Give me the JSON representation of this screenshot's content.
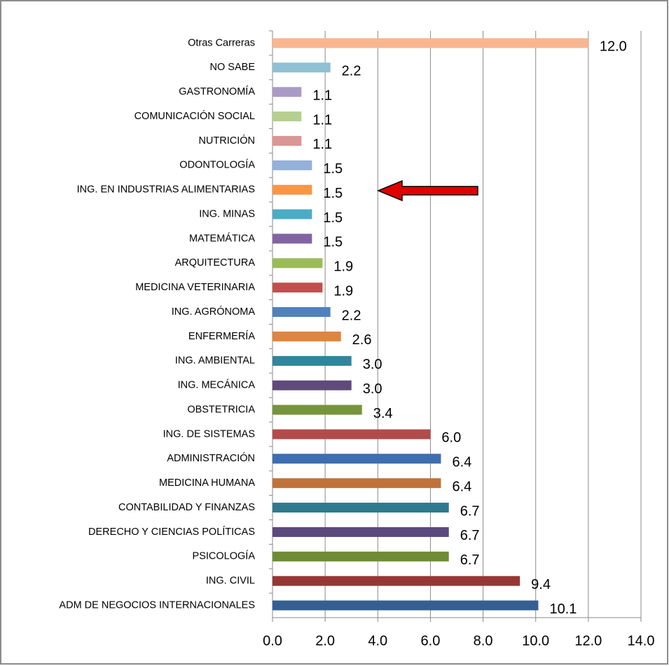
{
  "chart_data": {
    "type": "barh",
    "categories": [
      "Otras Carreras",
      "NO SABE",
      "GASTRONOMÍA",
      "COMUNICACIÓN SOCIAL",
      "NUTRICIÓN",
      "ODONTOLOGÍA",
      "ING. EN INDUSTRIAS ALIMENTARIAS",
      "ING. MINAS",
      "MATEMÁTICA",
      "ARQUITECTURA",
      "MEDICINA VETERINARIA",
      "ING. AGRÓNOMA",
      "ENFERMERÍA",
      "ING. AMBIENTAL",
      "ING. MECÁNICA",
      "OBSTETRICIA",
      "ING. DE SISTEMAS",
      "ADMINISTRACIÓN",
      "MEDICINA HUMANA",
      "CONTABILIDAD Y FINANZAS",
      "DERECHO Y CIENCIAS POLÍTICAS",
      "PSICOLOGÍA",
      "ING. CIVIL",
      "ADM DE NEGOCIOS INTERNACIONALES"
    ],
    "values": [
      12.0,
      2.2,
      1.1,
      1.1,
      1.1,
      1.5,
      1.5,
      1.5,
      1.5,
      1.9,
      1.9,
      2.2,
      2.6,
      3.0,
      3.0,
      3.4,
      6.0,
      6.4,
      6.4,
      6.7,
      6.7,
      6.7,
      9.4,
      10.1
    ],
    "value_labels": [
      "12.0",
      "2.2",
      "1.1",
      "1.1",
      "1.1",
      "1.5",
      "1.5",
      "1.5",
      "1.5",
      "1.9",
      "1.9",
      "2.2",
      "2.6",
      "3.0",
      "3.0",
      "3.4",
      "6.0",
      "6.4",
      "6.4",
      "6.7",
      "6.7",
      "6.7",
      "9.4",
      "10.1"
    ],
    "colors": [
      "#f9b58e",
      "#8fc0d4",
      "#a99bc5",
      "#b5cf8f",
      "#d99694",
      "#95b0d9",
      "#f79646",
      "#4bacc6",
      "#8064a2",
      "#9bbb59",
      "#c0504d",
      "#4f81bd",
      "#e0853f",
      "#31859c",
      "#604a7b",
      "#77933c",
      "#b04c4a",
      "#3d6eb0",
      "#c0723a",
      "#2e7a8c",
      "#5c4a7c",
      "#6f8b36",
      "#953735",
      "#365f91"
    ],
    "xlim": [
      0,
      14
    ],
    "xticks": [
      {
        "value": 0,
        "label": "0.0"
      },
      {
        "value": 2,
        "label": "2.0"
      },
      {
        "value": 4,
        "label": "4.0"
      },
      {
        "value": 6,
        "label": "6.0"
      },
      {
        "value": 8,
        "label": "8.0"
      },
      {
        "value": 10,
        "label": "10.0"
      },
      {
        "value": 12,
        "label": "12.0"
      },
      {
        "value": 14,
        "label": "14.0"
      }
    ],
    "grid": true
  }
}
